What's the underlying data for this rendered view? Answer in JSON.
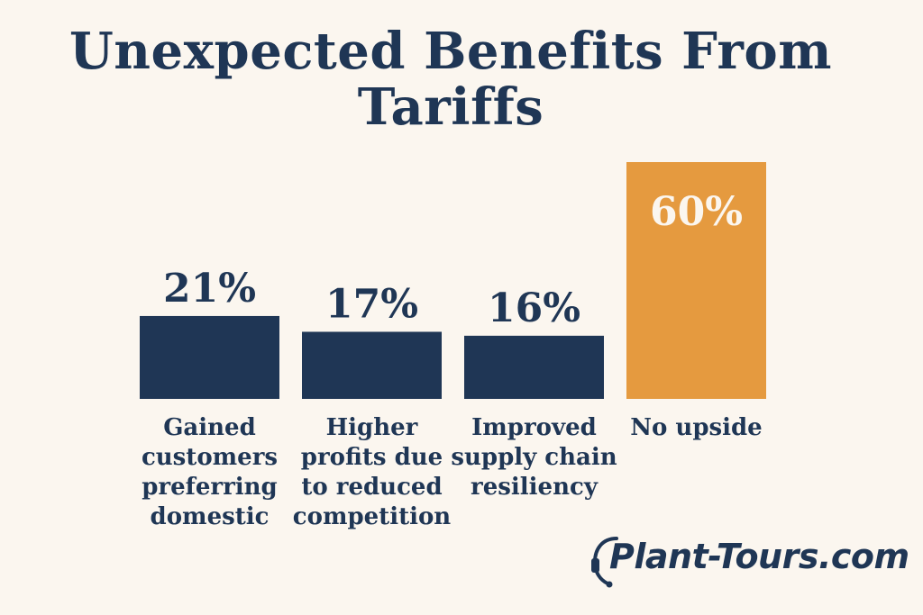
{
  "chart_data": {
    "type": "bar",
    "title": "Unexpected Benefits From Tariffs",
    "categories": [
      "Gained customers preferring domestic",
      "Higher profits due to reduced competition",
      "Improved supply chain resiliency",
      "No upside"
    ],
    "category_lines": [
      [
        "Gained",
        "customers",
        "preferring",
        "domestic"
      ],
      [
        "Higher",
        "profits due",
        "to reduced",
        "competition"
      ],
      [
        "Improved",
        "supply chain",
        "resiliency"
      ],
      [
        "No upside"
      ]
    ],
    "values": [
      21,
      17,
      16,
      60
    ],
    "value_labels": [
      "21%",
      "17%",
      "16%",
      "60%"
    ],
    "unit": "%",
    "ylim": [
      0,
      60
    ],
    "grid": false,
    "legend": "none",
    "colors": [
      "#1f3655",
      "#1f3655",
      "#1f3655",
      "#e59a3f"
    ]
  },
  "brand": {
    "name": "Plant-Tours.com",
    "icon": "headset-icon"
  },
  "colors": {
    "background": "#fbf6ef",
    "navy": "#1f3655",
    "orange": "#e59a3f",
    "on_highlight_text": "#fbf6ef"
  }
}
